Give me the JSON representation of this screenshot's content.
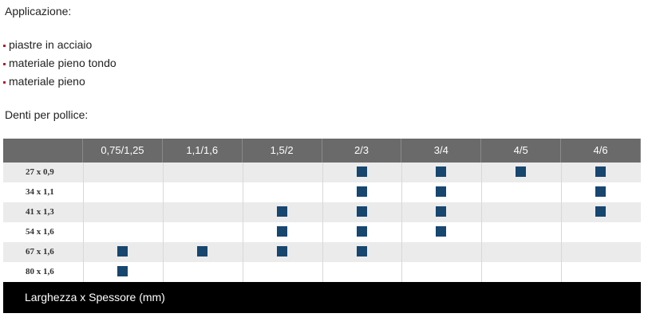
{
  "header": {
    "title": "Applicazione:"
  },
  "list": {
    "items": [
      "piastre in acciaio",
      "materiale pieno tondo",
      "materiale pieno"
    ]
  },
  "section": {
    "title": "Denti per pollice:"
  },
  "table": {
    "columns": [
      "0,75/1,25",
      "1,1/1,6",
      "1,5/2",
      "2/3",
      "3/4",
      "4/5",
      "4/6"
    ],
    "rows": [
      {
        "label": "27 x 0,9",
        "marks": [
          false,
          false,
          false,
          true,
          true,
          true,
          true
        ]
      },
      {
        "label": "34 x 1,1",
        "marks": [
          false,
          false,
          false,
          true,
          true,
          false,
          true
        ]
      },
      {
        "label": "41 x 1,3",
        "marks": [
          false,
          false,
          true,
          true,
          true,
          false,
          true
        ]
      },
      {
        "label": "54 x 1,6",
        "marks": [
          false,
          false,
          true,
          true,
          true,
          false,
          false
        ]
      },
      {
        "label": "67 x 1,6",
        "marks": [
          true,
          true,
          true,
          true,
          false,
          false,
          false
        ]
      },
      {
        "label": "80 x 1,6",
        "marks": [
          true,
          false,
          false,
          false,
          false,
          false,
          false
        ]
      }
    ],
    "footer": "Larghezza x Spessore (mm)"
  }
}
